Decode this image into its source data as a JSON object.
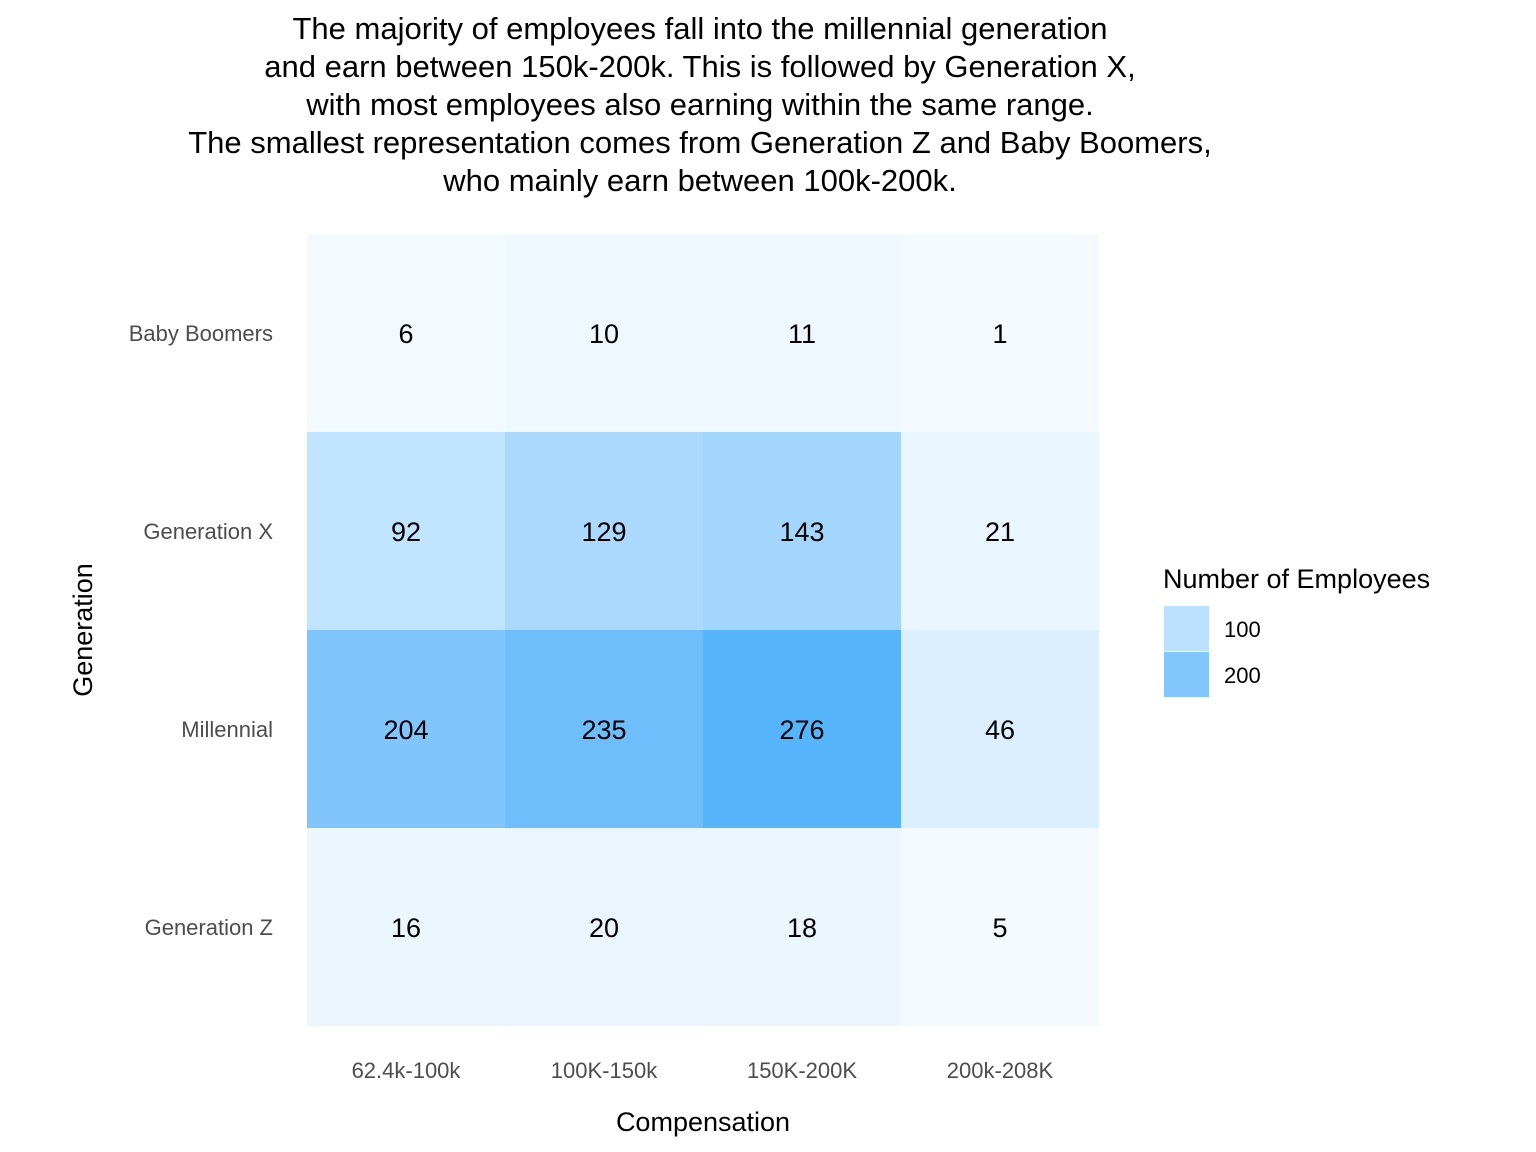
{
  "title_lines": [
    "The majority of employees fall into the millennial generation",
    "and earn between 150k-200k. This is followed by Generation X,",
    "with most employees also earning within the same range.",
    "The smallest representation comes from Generation Z and Baby Boomers,",
    "who mainly earn between 100k-200k."
  ],
  "chart_data": {
    "type": "heatmap",
    "title": "The majority of employees fall into the millennial generation and earn between 150k-200k. This is followed by Generation X, with most employees also earning within the same range. The smallest representation comes from Generation Z and Baby Boomers, who mainly earn between 100k-200k.",
    "xlabel": "Compensation",
    "ylabel": "Generation",
    "x_categories": [
      "62.4k-100k",
      "100K-150k",
      "150K-200K",
      "200k-208K"
    ],
    "y_categories": [
      "Baby Boomers",
      "Generation X",
      "Millennial",
      "Generation Z"
    ],
    "values": [
      [
        6,
        10,
        11,
        1
      ],
      [
        92,
        129,
        143,
        21
      ],
      [
        204,
        235,
        276,
        46
      ],
      [
        16,
        20,
        18,
        5
      ]
    ],
    "color_low": "#f5faff",
    "color_high": "#56b4fb",
    "value_range": [
      1,
      276
    ],
    "legend": {
      "title": "Number of Employees",
      "entries": [
        {
          "label": "100",
          "value": 100
        },
        {
          "label": "200",
          "value": 200
        }
      ],
      "position": "right"
    },
    "grid": false
  }
}
